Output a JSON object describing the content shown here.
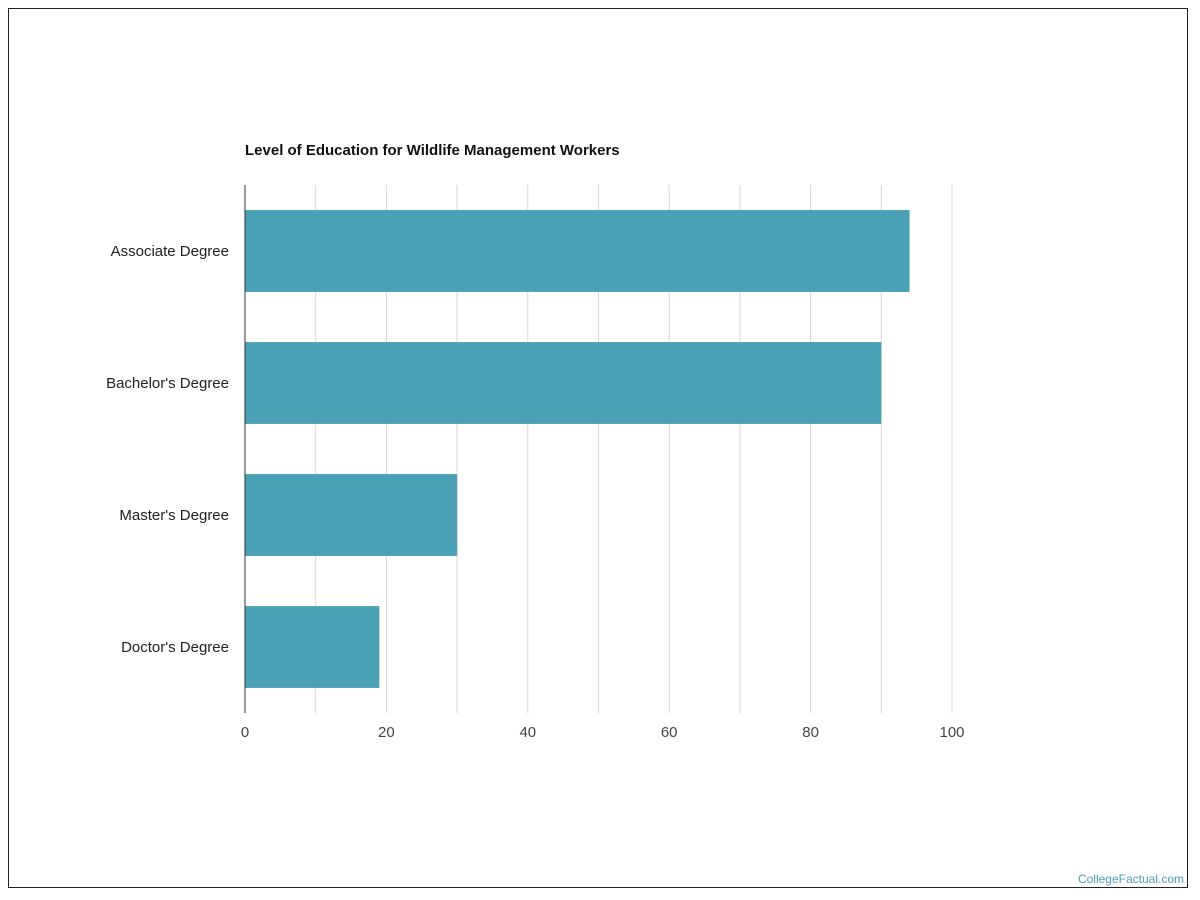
{
  "chart_data": {
    "type": "bar",
    "orientation": "horizontal",
    "title": "Level of Education for Wildlife Management Workers",
    "categories": [
      "Associate Degree",
      "Bachelor's Degree",
      "Master's Degree",
      "Doctor's Degree"
    ],
    "values": [
      94,
      90,
      30,
      19
    ],
    "xlabel": "",
    "ylabel": "",
    "xlim": [
      0,
      100
    ],
    "xticks": [
      "0",
      "20",
      "40",
      "60",
      "80",
      "100"
    ],
    "grid": true,
    "legend": "none",
    "bar_color": "#4aa0b4"
  },
  "watermark": "CollegeFactual.com"
}
